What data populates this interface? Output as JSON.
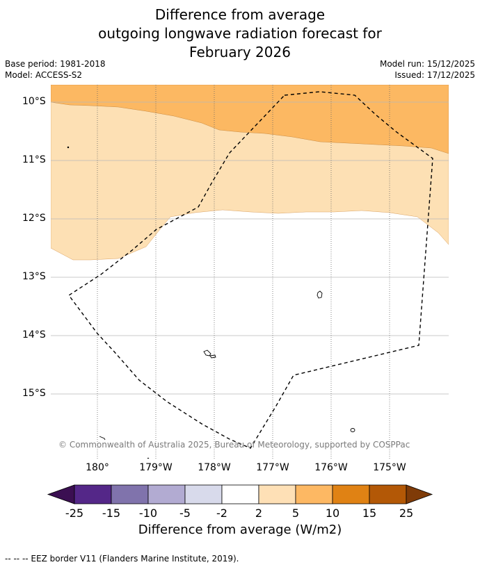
{
  "title": {
    "line1": "Difference from average",
    "line2": "outgoing longwave radiation forecast for",
    "line3": "February 2026"
  },
  "meta": {
    "base_period": "Base period: 1981-2018",
    "model": "Model: ACCESS-S2",
    "model_run": "Model run: 15/12/2025",
    "issued": "Issued: 17/12/2025"
  },
  "map": {
    "latitude_labels": [
      "10°S",
      "11°S",
      "12°S",
      "13°S",
      "14°S",
      "15°S"
    ],
    "longitude_labels": [
      "180°",
      "179°W",
      "178°W",
      "177°W",
      "176°W",
      "175°W"
    ],
    "credit": "© Commonwealth of Australia 2025, Bureau of Meteorology, supported by COSPPac",
    "fill_colors": {
      "band_5_to_10": "#fcb862",
      "band_2_to_5": "#fde0b4",
      "band_neutral": "#ffffff"
    }
  },
  "colorbar": {
    "title": "Difference from average (W/m2)",
    "tick_labels": [
      "-25",
      "-15",
      "-10",
      "-5",
      "-2",
      "2",
      "5",
      "10",
      "15",
      "25"
    ],
    "under_color": "#3b0f52",
    "over_color": "#7f3b08",
    "bin_colors": [
      "#542788",
      "#8073ac",
      "#b2abd2",
      "#d8daeb",
      "#ffffff",
      "#fee0b6",
      "#fdb863",
      "#e08214",
      "#b35806"
    ]
  },
  "footer": {
    "legend": "--  --  -- EEZ border V11 (Flanders Marine Institute, 2019)."
  }
}
